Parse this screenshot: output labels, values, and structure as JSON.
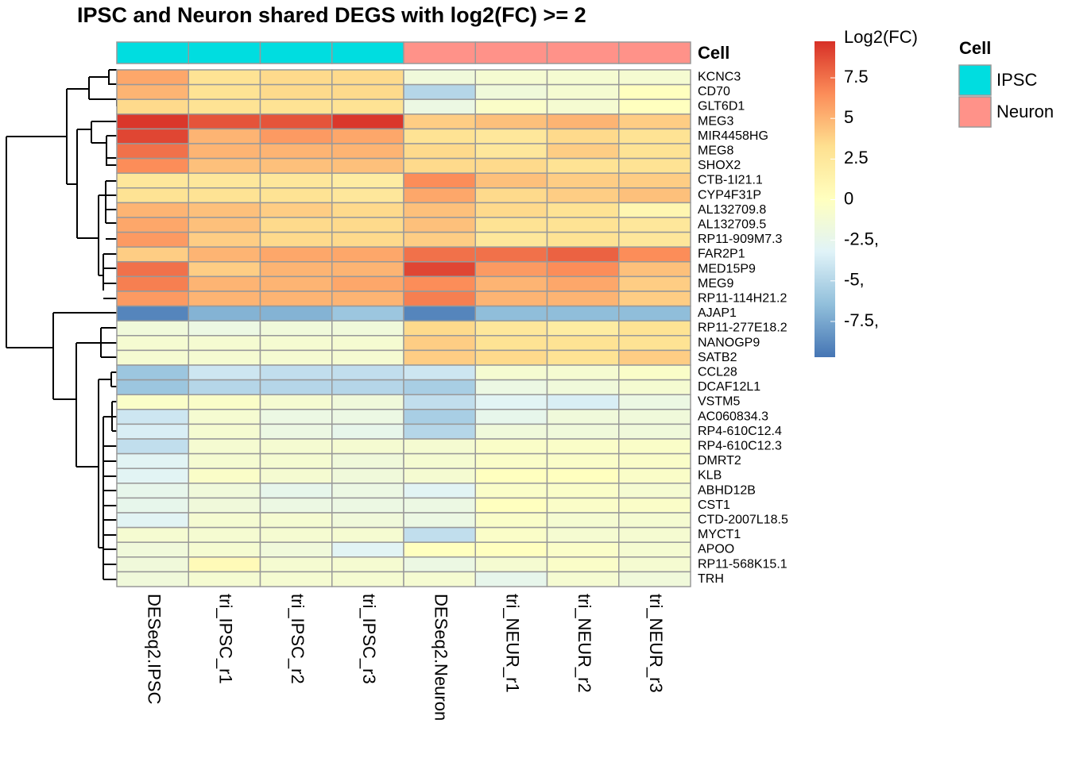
{
  "chart_data": {
    "type": "heatmap",
    "title": "IPSC and Neuron shared DEGS with log2(FC) >= 2",
    "columns": [
      "DESeq2.IPSC",
      "tri_IPSC_r1",
      "tri_IPSC_r2",
      "tri_IPSC_r3",
      "DESeq2.Neuron",
      "tri_NEUR_r1",
      "tri_NEUR_r2",
      "tri_NEUR_r3"
    ],
    "rows": [
      "KCNC3",
      "CD70",
      "GLT6D1",
      "MEG3",
      "MIR4458HG",
      "MEG8",
      "SHOX2",
      "CTB-1I21.1",
      "CYP4F31P",
      "AL132709.8",
      "AL132709.5",
      "RP11-909M7.3",
      "FAR2P1",
      "MED15P9",
      "MEG9",
      "RP11-114H21.2",
      "AJAP1",
      "RP11-277E18.2",
      "NANOGP9",
      "SATB2",
      "CCL28",
      "DCAF12L1",
      "VSTM5",
      "AC060834.3",
      "RP4-610C12.4",
      "RP4-610C12.3",
      "DMRT2",
      "KLB",
      "ABHD12B",
      "CST1",
      "CTD-2007L18.5",
      "MYCT1",
      "APOO",
      "RP11-568K15.1",
      "TRH"
    ],
    "values": [
      [
        5.5,
        3,
        3.5,
        3.5,
        -1.5,
        -1,
        -1,
        -1
      ],
      [
        5,
        3,
        3.5,
        3.5,
        -5,
        -1.5,
        -1,
        0
      ],
      [
        3.5,
        3,
        3,
        3,
        -2,
        -0.5,
        -1,
        0
      ],
      [
        9.5,
        8.5,
        8.5,
        9.5,
        4,
        4.5,
        5,
        4
      ],
      [
        9,
        5,
        6,
        5.5,
        3,
        2.5,
        3.5,
        3
      ],
      [
        7.5,
        5,
        5,
        5,
        3.5,
        2.5,
        4,
        3
      ],
      [
        6.5,
        4.5,
        4.5,
        4.5,
        3.5,
        3.5,
        3,
        3
      ],
      [
        2.5,
        2.5,
        2.5,
        2,
        6.5,
        4.5,
        4,
        4
      ],
      [
        3,
        3,
        3,
        2.5,
        5.5,
        3.5,
        4,
        4.5
      ],
      [
        5,
        4.5,
        4,
        3.5,
        4.5,
        3.5,
        3,
        1
      ],
      [
        5.5,
        4.5,
        3.5,
        3.5,
        4.5,
        3,
        3,
        2.5
      ],
      [
        6,
        4,
        3.5,
        3.5,
        4,
        2.5,
        3,
        2.5
      ],
      [
        4,
        5,
        5.5,
        5.5,
        7.5,
        7.5,
        8,
        6.5
      ],
      [
        7.5,
        4,
        5,
        5,
        9,
        6,
        6.5,
        4.5
      ],
      [
        7,
        5,
        5,
        5.5,
        6.5,
        5,
        5.5,
        4
      ],
      [
        6,
        5,
        5,
        5,
        7,
        5,
        5,
        4
      ],
      [
        -9,
        -7,
        -7,
        -6,
        -9,
        -6.5,
        -6.5,
        -6.5
      ],
      [
        -1.5,
        -2,
        -1.5,
        -1.5,
        3.5,
        2.5,
        2,
        3
      ],
      [
        -1,
        -1,
        -1,
        -1,
        4,
        3,
        3,
        3
      ],
      [
        -1,
        -1,
        -1,
        -1,
        4,
        3.5,
        3,
        4
      ],
      [
        -6,
        -4,
        -4.5,
        -4.5,
        -4,
        -1,
        -1,
        -0.5
      ],
      [
        -6,
        -5,
        -5,
        -5,
        -5.5,
        -2,
        -1.5,
        -1
      ],
      [
        -0.5,
        -0.5,
        -1,
        -1.5,
        -4.5,
        -3,
        -3.5,
        -2
      ],
      [
        -4,
        -1,
        -2,
        -2,
        -5.5,
        -2.5,
        -1.5,
        -1.5
      ],
      [
        -3.5,
        -1,
        -2,
        -2.5,
        -5,
        -1.5,
        -1.5,
        -1.5
      ],
      [
        -4.5,
        -1,
        -1,
        -1,
        -1,
        -0.5,
        -0.5,
        -0.5
      ],
      [
        -3,
        -1,
        -1,
        -1.5,
        -1,
        -0.5,
        -0.5,
        -0.5
      ],
      [
        -3,
        -0.5,
        -1,
        -1.5,
        -1,
        0,
        0,
        -0.5
      ],
      [
        -2.5,
        -1.5,
        -2.5,
        -2,
        -3,
        -0.5,
        -0.5,
        -1
      ],
      [
        -2.5,
        -1.5,
        -2,
        -2,
        -2,
        0,
        -0.5,
        -0.5
      ],
      [
        -3,
        -1,
        -1,
        -1.5,
        -2,
        -0.5,
        -1,
        -1
      ],
      [
        -1,
        -1,
        -1,
        -1,
        -4.5,
        -0.5,
        -1,
        -1
      ],
      [
        -1.5,
        -1,
        -1.5,
        -3,
        0,
        0,
        -0.5,
        -1
      ],
      [
        -1.5,
        0.5,
        -1,
        -1,
        -2,
        -1,
        -0.5,
        -1
      ],
      [
        -1.5,
        -1,
        -1,
        -1,
        -1,
        -2.5,
        -1,
        -1.5
      ]
    ],
    "colorbar": {
      "title": "Log2(FC)",
      "clim": [
        -9.7,
        9.75
      ],
      "colors": [
        "#4575B4",
        "#91BFDB",
        "#E0F3F8",
        "#FFFFBF",
        "#FEE090",
        "#FC8D59",
        "#D73027"
      ],
      "ticks": [
        7.5,
        5,
        2.5,
        0,
        {
          "value": -2.5,
          "label": "-2.5,"
        },
        {
          "value": -5,
          "label": "-5,"
        },
        {
          "value": -7.5,
          "label": "-7.5,"
        }
      ]
    },
    "annotation": {
      "title": "Cell",
      "levels": [
        {
          "name": "IPSC",
          "color": "#00DDE0"
        },
        {
          "name": "Neuron",
          "color": "#FF9289"
        }
      ],
      "column_levels": [
        0,
        0,
        0,
        0,
        1,
        1,
        1,
        1
      ]
    }
  }
}
